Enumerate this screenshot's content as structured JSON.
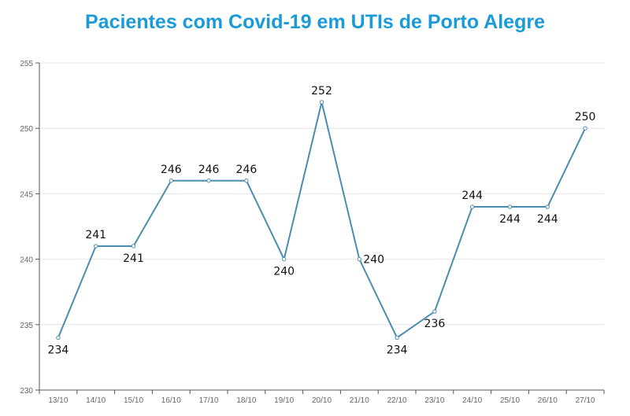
{
  "chart_data": {
    "type": "line",
    "title": "Pacientes com Covid-19 em UTIs de Porto Alegre",
    "categories": [
      "13/10",
      "14/10",
      "15/10",
      "16/10",
      "17/10",
      "18/10",
      "19/10",
      "20/10",
      "21/10",
      "22/10",
      "23/10",
      "24/10",
      "25/10",
      "26/10",
      "27/10"
    ],
    "values": [
      234,
      241,
      241,
      246,
      246,
      246,
      240,
      252,
      240,
      234,
      236,
      244,
      244,
      244,
      250
    ],
    "ylim": [
      230,
      255
    ],
    "yticks": [
      230,
      235,
      240,
      245,
      250,
      255
    ],
    "xlabel": "",
    "ylabel": "",
    "grid": true,
    "legend": "none",
    "colors": {
      "line": "#4a8db0",
      "title": "#1a9bd8"
    }
  }
}
